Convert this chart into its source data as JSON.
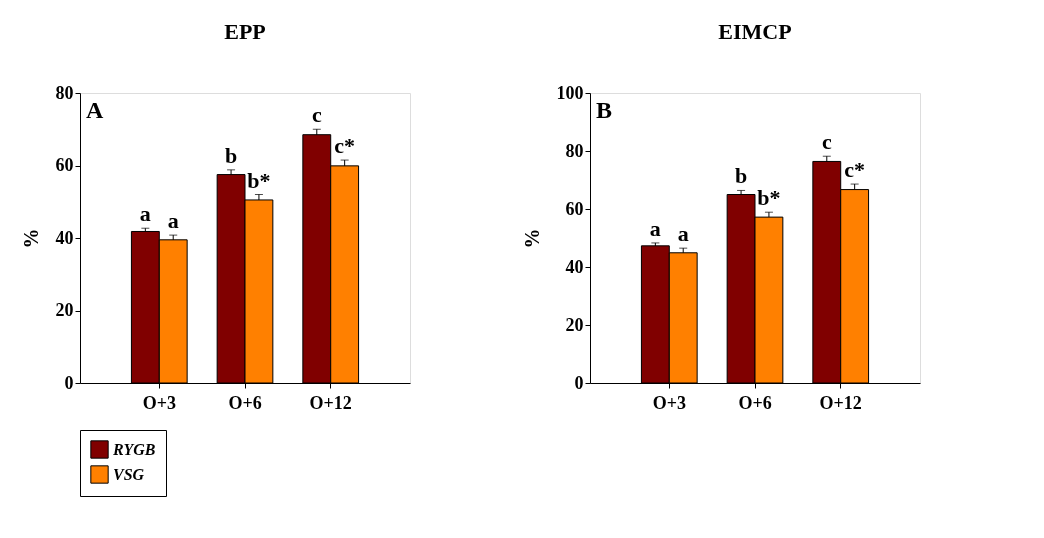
{
  "chart_data": [
    {
      "type": "bar",
      "title": "EPP",
      "ylabel": "%",
      "categories": [
        "O+3",
        "O+6",
        "O+12"
      ],
      "ylim": [
        0,
        80
      ],
      "yticks": [
        0,
        20,
        40,
        60,
        80
      ],
      "grid": false,
      "legend": "bottom",
      "annotations": [
        "A"
      ],
      "series": [
        {
          "name": "RYGB",
          "color": "#800000",
          "values": [
            41.8,
            57.5,
            68.5
          ],
          "errors": [
            0.9,
            1.3,
            1.5
          ],
          "value_labels": [
            "a",
            "b",
            "c"
          ]
        },
        {
          "name": "VSG",
          "color": "#ff8000",
          "values": [
            39.5,
            50.5,
            59.9
          ],
          "errors": [
            1.3,
            1.5,
            1.6
          ],
          "value_labels": [
            "a",
            "b*",
            "c*"
          ]
        }
      ]
    },
    {
      "type": "bar",
      "title": "EIMCP",
      "ylabel": "%",
      "categories": [
        "O+3",
        "O+6",
        "O+12"
      ],
      "ylim": [
        0,
        100
      ],
      "yticks": [
        0,
        20,
        40,
        60,
        80,
        100
      ],
      "grid": false,
      "legend": false,
      "annotations": [
        "B"
      ],
      "series": [
        {
          "name": "RYGB",
          "color": "#800000",
          "values": [
            47.3,
            65.0,
            76.4
          ],
          "errors": [
            1.0,
            1.4,
            1.8
          ],
          "value_labels": [
            "a",
            "b",
            "c"
          ]
        },
        {
          "name": "VSG",
          "color": "#ff8000",
          "values": [
            44.9,
            57.2,
            66.7
          ],
          "errors": [
            1.6,
            1.7,
            1.9
          ],
          "value_labels": [
            "a",
            "b*",
            "c*"
          ]
        }
      ]
    }
  ]
}
